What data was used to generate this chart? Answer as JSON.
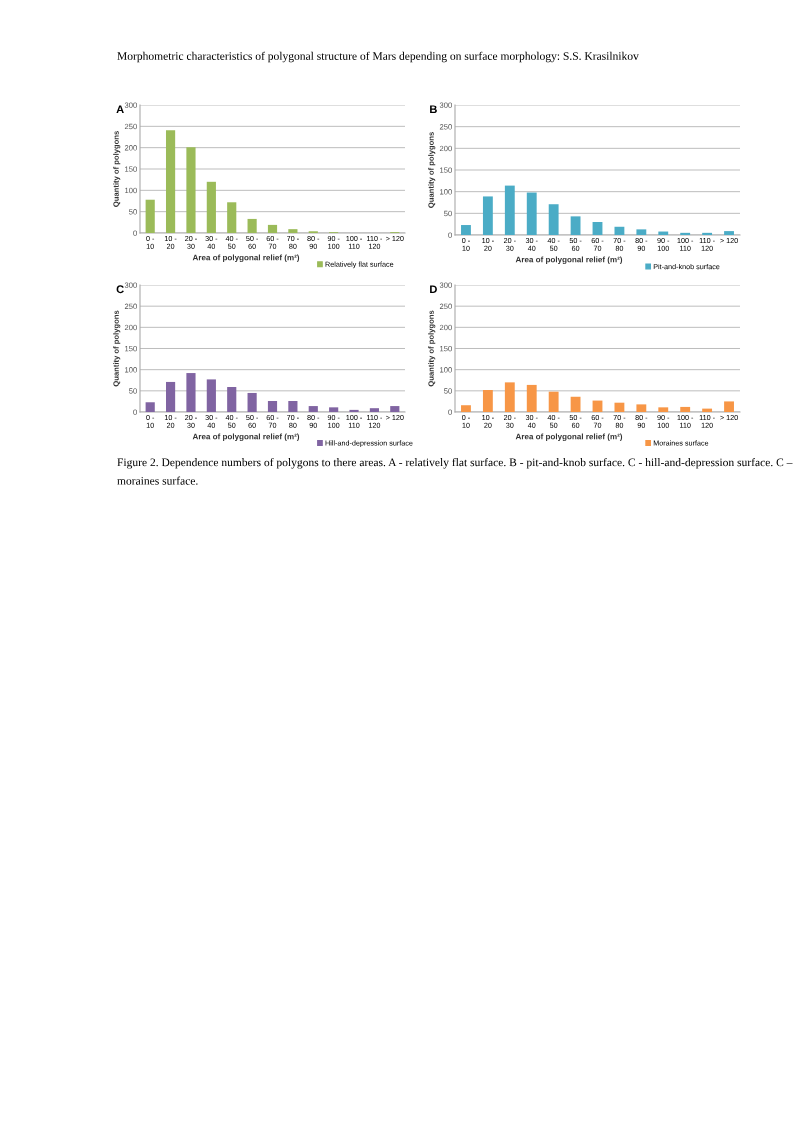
{
  "chart_data": [
    {
      "type": "bar",
      "title": "A",
      "annotations": [
        "Morphometric characteristics of polygonal structure of Mars depending on surface morphology: S.S. Krasilnikov"
      ],
      "xlabel": "Area of polygonal relief (m²)",
      "ylabel": "Quantity of polygons",
      "categories": [
        "0 - 10",
        "10 - 20",
        "20 - 30",
        "30 - 40",
        "40 - 50",
        "50 - 60",
        "60 - 70",
        "70 - 80",
        "80 - 90",
        "90 - 100",
        "100 - 110",
        "110 - 120",
        "> 120"
      ],
      "series": [
        {
          "name": "Relatively flat surface",
          "color": "#9bbb59",
          "values": [
            78,
            241,
            201,
            120,
            72,
            33,
            19,
            9,
            4,
            2,
            0,
            0,
            2
          ]
        }
      ],
      "ylim": [
        0,
        300
      ],
      "yticks": [
        0,
        50,
        100,
        150,
        200,
        250,
        300
      ],
      "grid": "y",
      "legend": "bottom"
    },
    {
      "type": "bar",
      "title": "B",
      "xlabel": "Area of polygonal relief (m²)",
      "ylabel": "Quantity of polygons",
      "categories": [
        "0 - 10",
        "10 - 20",
        "20 - 30",
        "30 - 40",
        "40 - 50",
        "50 - 60",
        "60 - 70",
        "70 - 80",
        "80 - 90",
        "90 - 100",
        "100 - 110",
        "110 - 120",
        "> 120"
      ],
      "series": [
        {
          "name": "Pit-and-knob surface",
          "color": "#4bacc6",
          "values": [
            23,
            89,
            114,
            98,
            71,
            43,
            30,
            19,
            13,
            8,
            5,
            5,
            9
          ]
        }
      ],
      "ylim": [
        0,
        300
      ],
      "yticks": [
        0,
        50,
        100,
        150,
        200,
        250,
        300
      ],
      "grid": "y",
      "legend": "bottom"
    },
    {
      "type": "bar",
      "title": "C",
      "xlabel": "Area of polygonal relief (m²)",
      "ylabel": "Quantity of polygons",
      "categories": [
        "0 - 10",
        "10 - 20",
        "20 - 30",
        "30 - 40",
        "40 - 50",
        "50 - 60",
        "60 - 70",
        "70 - 80",
        "80 - 90",
        "90 - 100",
        "100 - 110",
        "110 - 120",
        "> 120"
      ],
      "series": [
        {
          "name": "Hill-and-depression surface",
          "color": "#8064a2",
          "values": [
            23,
            71,
            92,
            77,
            59,
            45,
            26,
            26,
            14,
            11,
            5,
            9,
            14
          ]
        }
      ],
      "ylim": [
        0,
        300
      ],
      "yticks": [
        0,
        50,
        100,
        150,
        200,
        250,
        300
      ],
      "grid": "y",
      "legend": "bottom"
    },
    {
      "type": "bar",
      "title": "D",
      "annotations": [
        "Figure 2. Dependence numbers of polygons to there areas. A - relatively flat surface. B - pit-and-knob surface. C - hill-and-depression surface. C – moraines surface."
      ],
      "xlabel": "Area of polygonal relief (m²)",
      "ylabel": "Quantity of polygons",
      "categories": [
        "0 - 10",
        "10 - 20",
        "20 - 30",
        "30 - 40",
        "40 - 50",
        "50 - 60",
        "60 - 70",
        "70 - 80",
        "80 - 90",
        "90 - 100",
        "100 - 110",
        "110 - 120",
        "> 120"
      ],
      "series": [
        {
          "name": "Moraines surface",
          "color": "#f79646",
          "values": [
            16,
            52,
            70,
            64,
            48,
            36,
            27,
            22,
            18,
            11,
            12,
            8,
            25
          ]
        }
      ],
      "ylim": [
        0,
        300
      ],
      "yticks": [
        0,
        50,
        100,
        150,
        200,
        250,
        300
      ],
      "grid": "y",
      "legend": "bottom"
    }
  ]
}
